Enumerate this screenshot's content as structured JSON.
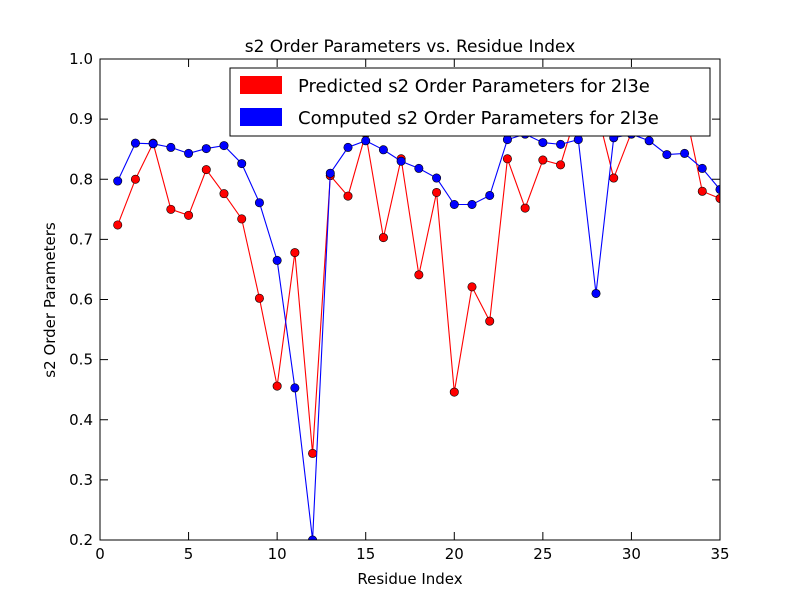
{
  "chart_data": {
    "type": "line",
    "title": "s2 Order Parameters vs. Residue Index",
    "xlabel": "Residue Index",
    "ylabel": "s2 Order Parameters",
    "xlim": [
      0,
      35
    ],
    "ylim": [
      0.2,
      1.0
    ],
    "x_ticks": [
      "0",
      "5",
      "10",
      "15",
      "20",
      "25",
      "30",
      "35"
    ],
    "y_ticks": [
      "0.2",
      "0.3",
      "0.4",
      "0.5",
      "0.6",
      "0.7",
      "0.8",
      "0.9",
      "1.0"
    ],
    "grid": false,
    "legend_position": "top-right",
    "series": [
      {
        "name": "Predicted s2 Order Parameters for 2l3e",
        "color": "#ff0000",
        "x": [
          1,
          2,
          3,
          4,
          5,
          6,
          7,
          8,
          9,
          10,
          11,
          12,
          13,
          14,
          15,
          16,
          17,
          18,
          19,
          20,
          21,
          22,
          23,
          24,
          25,
          26,
          27,
          28,
          29,
          30,
          31,
          32,
          33,
          34,
          35
        ],
        "y": [
          0.724,
          0.8,
          0.86,
          0.75,
          0.74,
          0.816,
          0.776,
          0.734,
          0.602,
          0.456,
          0.678,
          0.344,
          0.806,
          0.772,
          0.876,
          0.703,
          0.834,
          0.641,
          0.778,
          0.446,
          0.621,
          0.564,
          0.834,
          0.752,
          0.832,
          0.824,
          0.92,
          0.92,
          0.802,
          0.878,
          0.92,
          0.92,
          0.92,
          0.78,
          0.768
        ]
      },
      {
        "name": "Computed s2 Order Parameters for 2l3e",
        "color": "#0000ff",
        "x": [
          1,
          2,
          3,
          4,
          5,
          6,
          7,
          8,
          9,
          10,
          11,
          12,
          13,
          14,
          15,
          16,
          17,
          18,
          19,
          20,
          21,
          22,
          23,
          24,
          25,
          26,
          27,
          28,
          29,
          30,
          31,
          32,
          33,
          34,
          35
        ],
        "y": [
          0.797,
          0.86,
          0.859,
          0.853,
          0.843,
          0.851,
          0.856,
          0.826,
          0.761,
          0.665,
          0.453,
          0.2,
          0.81,
          0.853,
          0.864,
          0.849,
          0.83,
          0.818,
          0.802,
          0.758,
          0.758,
          0.773,
          0.866,
          0.875,
          0.861,
          0.858,
          0.866,
          0.61,
          0.869,
          0.875,
          0.864,
          0.841,
          0.843,
          0.818,
          0.783
        ]
      }
    ]
  }
}
